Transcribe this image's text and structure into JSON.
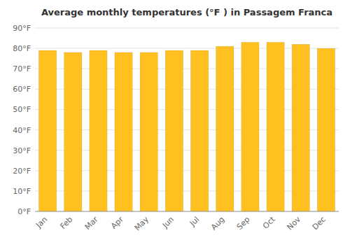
{
  "chart_data": {
    "type": "bar",
    "title": "Average monthly temperatures (°F ) in Passagem Franca",
    "categories": [
      "Jan",
      "Feb",
      "Mar",
      "Apr",
      "May",
      "Jun",
      "Jul",
      "Aug",
      "Sep",
      "Oct",
      "Nov",
      "Dec"
    ],
    "values": [
      79,
      78,
      79,
      78,
      78,
      79,
      79,
      81,
      83,
      83,
      82,
      80
    ],
    "color": "#FFC020",
    "ylim": [
      0,
      90
    ],
    "yticks": [
      {
        "value": 0,
        "label": "0°F"
      },
      {
        "value": 10,
        "label": "10°F"
      },
      {
        "value": 20,
        "label": "20°F"
      },
      {
        "value": 30,
        "label": "30°F"
      },
      {
        "value": 40,
        "label": "40°F"
      },
      {
        "value": 50,
        "label": "50°F"
      },
      {
        "value": 60,
        "label": "60°F"
      },
      {
        "value": 70,
        "label": "70°F"
      },
      {
        "value": 80,
        "label": "80°F"
      },
      {
        "value": 90,
        "label": "90°F"
      }
    ],
    "grid": true
  }
}
